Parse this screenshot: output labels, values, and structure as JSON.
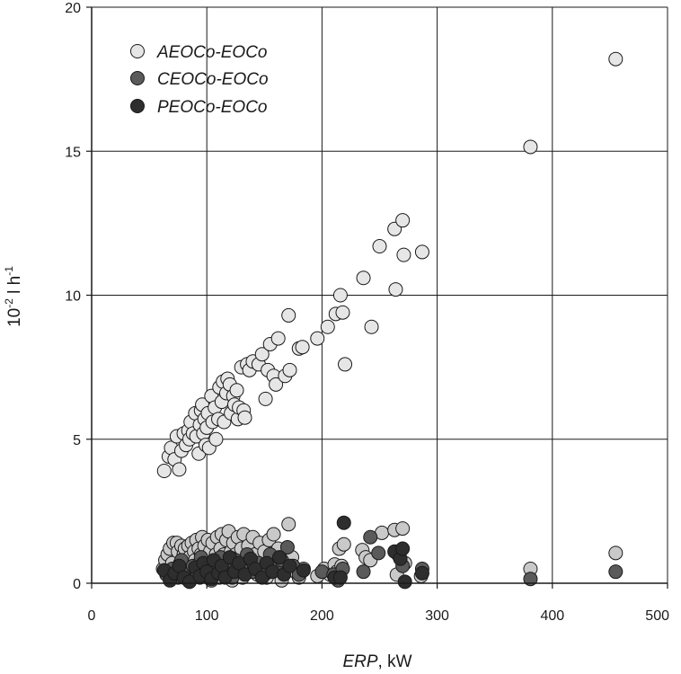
{
  "chart_data": {
    "type": "scatter",
    "xlabel_italic": "ERP",
    "xlabel_rest": ", kW",
    "ylabel_base": "10",
    "ylabel_exp": "-2",
    "ylabel_mid": " l h",
    "ylabel_exp2": "-1",
    "xlim": [
      0,
      500
    ],
    "ylim": [
      0,
      20
    ],
    "xticks": [
      0,
      100,
      200,
      300,
      400,
      500
    ],
    "yticks": [
      0,
      5,
      10,
      15,
      20
    ],
    "grid": true,
    "legend_position": "top-left",
    "series": [
      {
        "name": "AEOCo-EOCo",
        "fill": "#e6e6e6",
        "points": [
          [
            63,
            3.9
          ],
          [
            67,
            4.4
          ],
          [
            69,
            4.7
          ],
          [
            72,
            4.3
          ],
          [
            74,
            5.1
          ],
          [
            76,
            3.95
          ],
          [
            78,
            4.6
          ],
          [
            80,
            5.2
          ],
          [
            82,
            4.8
          ],
          [
            84,
            5.3
          ],
          [
            85,
            5.0
          ],
          [
            86,
            5.6
          ],
          [
            88,
            5.2
          ],
          [
            90,
            5.9
          ],
          [
            91,
            5.1
          ],
          [
            93,
            4.5
          ],
          [
            94,
            5.5
          ],
          [
            95,
            6.0
          ],
          [
            96,
            6.2
          ],
          [
            97,
            5.2
          ],
          [
            98,
            5.7
          ],
          [
            99,
            4.8
          ],
          [
            100,
            5.4
          ],
          [
            101,
            5.9
          ],
          [
            102,
            4.7
          ],
          [
            104,
            6.5
          ],
          [
            105,
            5.6
          ],
          [
            107,
            6.1
          ],
          [
            108,
            5.0
          ],
          [
            110,
            5.7
          ],
          [
            111,
            6.8
          ],
          [
            113,
            6.3
          ],
          [
            114,
            7.0
          ],
          [
            115,
            5.6
          ],
          [
            117,
            6.6
          ],
          [
            118,
            7.1
          ],
          [
            120,
            6.9
          ],
          [
            121,
            5.9
          ],
          [
            123,
            6.5
          ],
          [
            124,
            6.2
          ],
          [
            126,
            6.7
          ],
          [
            127,
            5.7
          ],
          [
            128,
            6.1
          ],
          [
            130,
            7.5
          ],
          [
            132,
            6.0
          ],
          [
            133,
            5.75
          ],
          [
            135,
            7.6
          ],
          [
            137,
            7.4
          ],
          [
            140,
            7.7
          ],
          [
            145,
            7.6
          ],
          [
            148,
            7.95
          ],
          [
            151,
            6.4
          ],
          [
            153,
            7.4
          ],
          [
            155,
            8.3
          ],
          [
            158,
            7.2
          ],
          [
            160,
            6.9
          ],
          [
            162,
            8.5
          ],
          [
            168,
            7.2
          ],
          [
            171,
            9.3
          ],
          [
            172,
            7.4
          ],
          [
            180,
            8.15
          ],
          [
            183,
            8.2
          ],
          [
            196,
            8.5
          ],
          [
            205,
            8.9
          ],
          [
            212,
            9.35
          ],
          [
            216,
            10.0
          ],
          [
            218,
            9.4
          ],
          [
            220,
            7.6
          ],
          [
            236,
            10.6
          ],
          [
            243,
            8.9
          ],
          [
            250,
            11.7
          ],
          [
            263,
            12.3
          ],
          [
            264,
            10.2
          ],
          [
            270,
            12.6
          ],
          [
            271,
            11.4
          ],
          [
            287,
            11.5
          ],
          [
            381,
            15.15
          ],
          [
            455,
            18.2
          ]
        ]
      },
      {
        "name": "CEOCo-EOCo",
        "fill": "#5a5a5a",
        "points": [
          [
            65,
            0.3
          ],
          [
            70,
            0.5
          ],
          [
            75,
            0.2
          ],
          [
            78,
            0.8
          ],
          [
            80,
            0.4
          ],
          [
            84,
            0.1
          ],
          [
            88,
            0.6
          ],
          [
            92,
            0.3
          ],
          [
            95,
            0.9
          ],
          [
            98,
            0.5
          ],
          [
            102,
            0.2
          ],
          [
            105,
            0.7
          ],
          [
            108,
            0.4
          ],
          [
            112,
            0.9
          ],
          [
            115,
            0.3
          ],
          [
            118,
            0.6
          ],
          [
            122,
            0.2
          ],
          [
            125,
            0.8
          ],
          [
            130,
            0.5
          ],
          [
            135,
            1.0
          ],
          [
            140,
            0.4
          ],
          [
            145,
            0.7
          ],
          [
            150,
            0.3
          ],
          [
            155,
            1.0
          ],
          [
            160,
            0.5
          ],
          [
            165,
            0.8
          ],
          [
            170,
            1.25
          ],
          [
            175,
            0.6
          ],
          [
            180,
            0.3
          ],
          [
            200,
            0.4
          ],
          [
            210,
            0.3
          ],
          [
            214,
            0.1
          ],
          [
            218,
            0.5
          ],
          [
            236,
            0.4
          ],
          [
            242,
            1.6
          ],
          [
            249,
            1.05
          ],
          [
            266,
            1.0
          ],
          [
            270,
            0.6
          ],
          [
            287,
            0.5
          ],
          [
            381,
            0.15
          ],
          [
            455,
            0.4
          ]
        ]
      },
      {
        "name": "PEOCo-EOCo",
        "fill": "#2e2e2e",
        "points": [
          [
            63,
            0.45
          ],
          [
            68,
            0.1
          ],
          [
            72,
            0.35
          ],
          [
            76,
            0.6
          ],
          [
            80,
            0.2
          ],
          [
            85,
            0.05
          ],
          [
            90,
            0.55
          ],
          [
            94,
            0.25
          ],
          [
            97,
            0.7
          ],
          [
            100,
            0.4
          ],
          [
            104,
            0.15
          ],
          [
            106,
            0.8
          ],
          [
            110,
            0.35
          ],
          [
            113,
            0.6
          ],
          [
            116,
            0.2
          ],
          [
            120,
            0.9
          ],
          [
            124,
            0.4
          ],
          [
            128,
            0.7
          ],
          [
            133,
            0.3
          ],
          [
            138,
            0.85
          ],
          [
            142,
            0.5
          ],
          [
            148,
            0.2
          ],
          [
            152,
            0.7
          ],
          [
            157,
            0.4
          ],
          [
            163,
            0.9
          ],
          [
            167,
            0.3
          ],
          [
            172,
            0.6
          ],
          [
            184,
            0.45
          ],
          [
            211,
            0.2
          ],
          [
            216,
            0.2
          ],
          [
            219,
            2.1
          ],
          [
            263,
            1.1
          ],
          [
            268,
            0.85
          ],
          [
            270,
            1.2
          ],
          [
            272,
            0.05
          ],
          [
            287,
            0.35
          ]
        ]
      },
      {
        "name": "",
        "fill": "#c9c9c9",
        "points": [
          [
            62,
            0.5
          ],
          [
            64,
            0.8
          ],
          [
            66,
            1.0
          ],
          [
            68,
            1.2
          ],
          [
            70,
            0.7
          ],
          [
            71,
            1.4
          ],
          [
            73,
            0.5
          ],
          [
            74,
            1.4
          ],
          [
            75,
            1.1
          ],
          [
            77,
            0.7
          ],
          [
            78,
            1.3
          ],
          [
            79,
            0.4
          ],
          [
            80,
            1.0
          ],
          [
            81,
            1.2
          ],
          [
            83,
            0.6
          ],
          [
            84,
            1.3
          ],
          [
            85,
            0.9
          ],
          [
            87,
            1.4
          ],
          [
            88,
            0.3
          ],
          [
            89,
            1.1
          ],
          [
            90,
            0.8
          ],
          [
            91,
            1.5
          ],
          [
            92,
            0.5
          ],
          [
            93,
            1.2
          ],
          [
            94,
            0.2
          ],
          [
            95,
            1.0
          ],
          [
            96,
            1.6
          ],
          [
            97,
            0.6
          ],
          [
            98,
            1.3
          ],
          [
            99,
            0.3
          ],
          [
            100,
            0.9
          ],
          [
            101,
            1.5
          ],
          [
            102,
            0.5
          ],
          [
            103,
            1.1
          ],
          [
            104,
            0.1
          ],
          [
            105,
            1.4
          ],
          [
            106,
            0.7
          ],
          [
            107,
            0.3
          ],
          [
            108,
            1.0
          ],
          [
            109,
            1.6
          ],
          [
            110,
            0.6
          ],
          [
            111,
            0.2
          ],
          [
            112,
            1.2
          ],
          [
            113,
            1.7
          ],
          [
            114,
            0.5
          ],
          [
            115,
            1.0
          ],
          [
            116,
            0.3
          ],
          [
            117,
            1.5
          ],
          [
            118,
            0.8
          ],
          [
            119,
            1.8
          ],
          [
            120,
            0.4
          ],
          [
            121,
            1.1
          ],
          [
            122,
            0.1
          ],
          [
            123,
            1.4
          ],
          [
            124,
            0.7
          ],
          [
            125,
            1.0
          ],
          [
            126,
            0.3
          ],
          [
            127,
            1.6
          ],
          [
            128,
            0.9
          ],
          [
            129,
            0.5
          ],
          [
            130,
            1.2
          ],
          [
            131,
            0.2
          ],
          [
            132,
            1.7
          ],
          [
            134,
            0.6
          ],
          [
            136,
            1.3
          ],
          [
            138,
            0.4
          ],
          [
            140,
            1.6
          ],
          [
            142,
            1.0
          ],
          [
            144,
            0.3
          ],
          [
            146,
            1.4
          ],
          [
            148,
            0.7
          ],
          [
            150,
            1.1
          ],
          [
            152,
            0.2
          ],
          [
            154,
            1.5
          ],
          [
            156,
            0.8
          ],
          [
            158,
            1.7
          ],
          [
            160,
            0.5
          ],
          [
            162,
            1.2
          ],
          [
            165,
            0.1
          ],
          [
            168,
            0.6
          ],
          [
            171,
            2.05
          ],
          [
            174,
            0.9
          ],
          [
            177,
            0.4
          ],
          [
            180,
            0.2
          ],
          [
            184,
            0.5
          ],
          [
            196,
            0.25
          ],
          [
            202,
            0.5
          ],
          [
            207,
            0.3
          ],
          [
            211,
            0.65
          ],
          [
            213,
            0.4
          ],
          [
            215,
            1.2
          ],
          [
            217,
            0.6
          ],
          [
            219,
            1.35
          ],
          [
            235,
            1.15
          ],
          [
            238,
            0.9
          ],
          [
            242,
            0.8
          ],
          [
            252,
            1.75
          ],
          [
            263,
            1.85
          ],
          [
            265,
            0.3
          ],
          [
            270,
            1.9
          ],
          [
            272,
            0.7
          ],
          [
            286,
            0.25
          ],
          [
            381,
            0.5
          ],
          [
            455,
            1.05
          ]
        ]
      }
    ]
  }
}
